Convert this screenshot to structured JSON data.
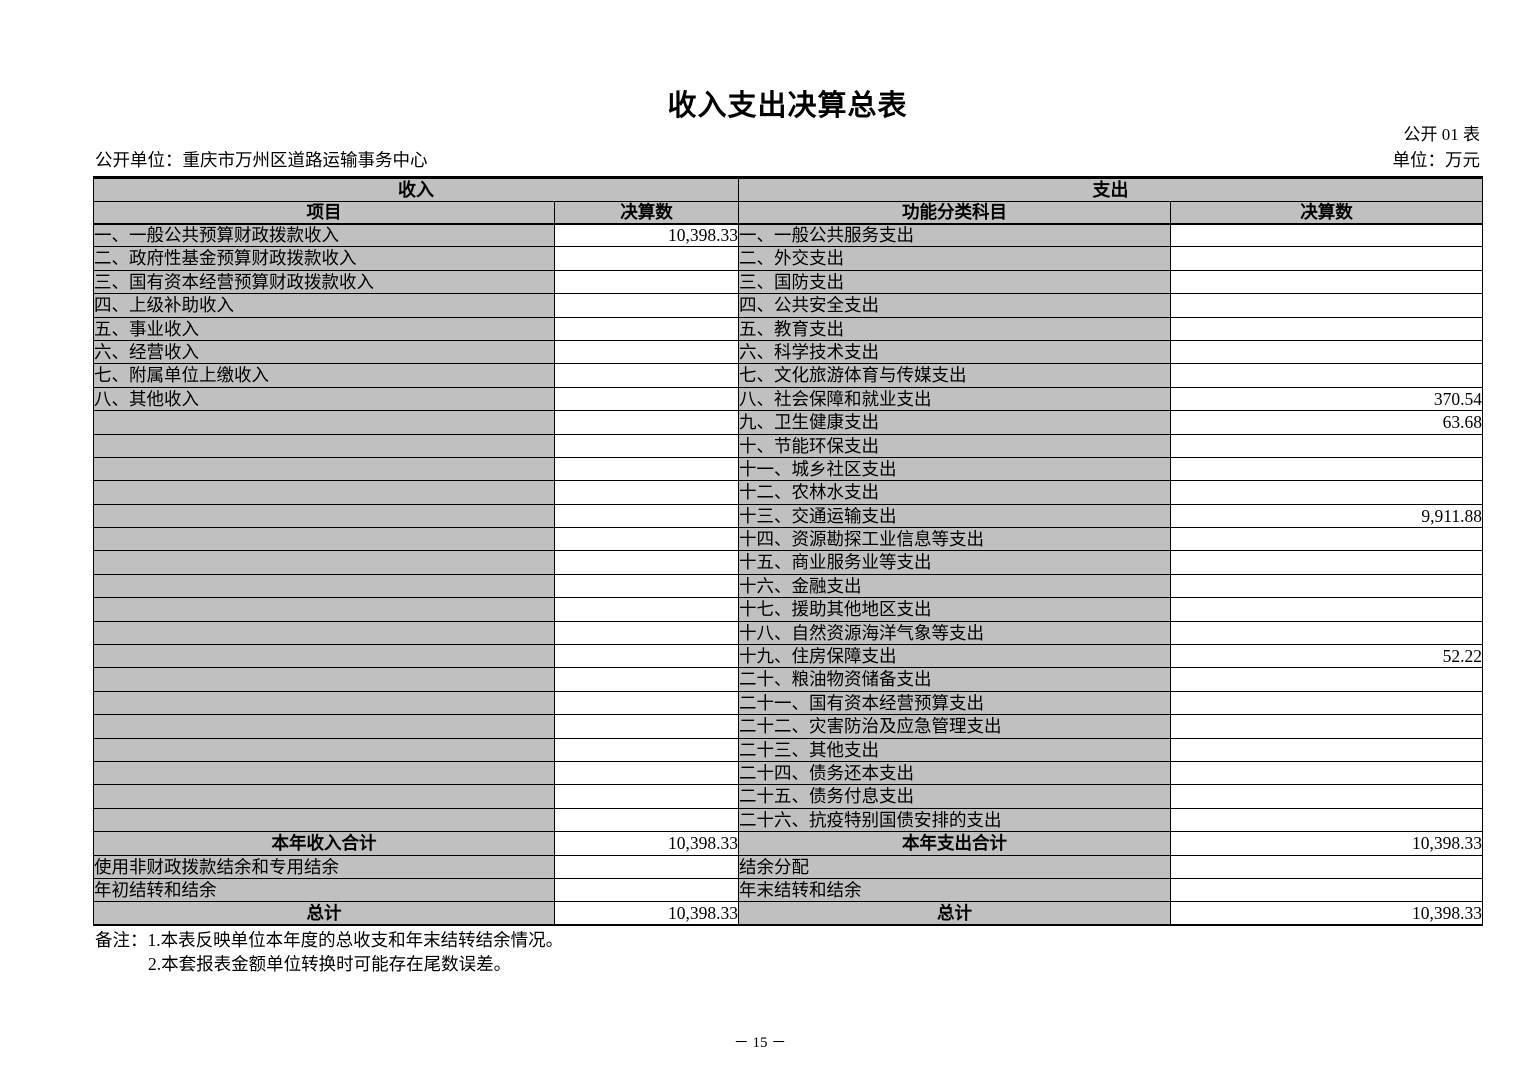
{
  "page": {
    "title": "收入支出决算总表",
    "table_code": "公开 01 表",
    "unit_line": "公开单位：重庆市万州区道路运输事务中心",
    "unit_measure": "单位：万元",
    "note_line1": "备注：1.本表反映单位本年度的总收支和年末结转结余情况。",
    "note_line2": "2.本套报表金额单位转换时可能存在尾数误差。",
    "page_number": "－ 15 －"
  },
  "colors": {
    "cell_gray": "#c0c0c0",
    "border": "#000000",
    "background": "#ffffff"
  },
  "table": {
    "income_header": "收入",
    "expense_header": "支出",
    "col_headers": [
      "项目",
      "决算数",
      "功能分类科目",
      "决算数"
    ],
    "rows": [
      {
        "income": "一、一般公共预算财政拨款收入",
        "income_value": "10,398.33",
        "expense": "一、一般公共服务支出",
        "expense_value": ""
      },
      {
        "income": "二、政府性基金预算财政拨款收入",
        "income_value": "",
        "expense": "二、外交支出",
        "expense_value": ""
      },
      {
        "income": "三、国有资本经营预算财政拨款收入",
        "income_value": "",
        "expense": "三、国防支出",
        "expense_value": ""
      },
      {
        "income": "四、上级补助收入",
        "income_value": "",
        "expense": "四、公共安全支出",
        "expense_value": ""
      },
      {
        "income": "五、事业收入",
        "income_value": "",
        "expense": "五、教育支出",
        "expense_value": ""
      },
      {
        "income": "六、经营收入",
        "income_value": "",
        "expense": "六、科学技术支出",
        "expense_value": ""
      },
      {
        "income": "七、附属单位上缴收入",
        "income_value": "",
        "expense": "七、文化旅游体育与传媒支出",
        "expense_value": ""
      },
      {
        "income": "八、其他收入",
        "income_value": "",
        "expense": "八、社会保障和就业支出",
        "expense_value": "370.54"
      },
      {
        "income": "",
        "income_value": "",
        "expense": "九、卫生健康支出",
        "expense_value": "63.68"
      },
      {
        "income": "",
        "income_value": "",
        "expense": "十、节能环保支出",
        "expense_value": ""
      },
      {
        "income": "",
        "income_value": "",
        "expense": "十一、城乡社区支出",
        "expense_value": ""
      },
      {
        "income": "",
        "income_value": "",
        "expense": "十二、农林水支出",
        "expense_value": ""
      },
      {
        "income": "",
        "income_value": "",
        "expense": "十三、交通运输支出",
        "expense_value": "9,911.88"
      },
      {
        "income": "",
        "income_value": "",
        "expense": "十四、资源勘探工业信息等支出",
        "expense_value": ""
      },
      {
        "income": "",
        "income_value": "",
        "expense": "十五、商业服务业等支出",
        "expense_value": ""
      },
      {
        "income": "",
        "income_value": "",
        "expense": "十六、金融支出",
        "expense_value": ""
      },
      {
        "income": "",
        "income_value": "",
        "expense": "十七、援助其他地区支出",
        "expense_value": ""
      },
      {
        "income": "",
        "income_value": "",
        "expense": "十八、自然资源海洋气象等支出",
        "expense_value": ""
      },
      {
        "income": "",
        "income_value": "",
        "expense": "十九、住房保障支出",
        "expense_value": "52.22"
      },
      {
        "income": "",
        "income_value": "",
        "expense": "二十、粮油物资储备支出",
        "expense_value": ""
      },
      {
        "income": "",
        "income_value": "",
        "expense": "二十一、国有资本经营预算支出",
        "expense_value": ""
      },
      {
        "income": "",
        "income_value": "",
        "expense": "二十二、灾害防治及应急管理支出",
        "expense_value": ""
      },
      {
        "income": "",
        "income_value": "",
        "expense": "二十三、其他支出",
        "expense_value": ""
      },
      {
        "income": "",
        "income_value": "",
        "expense": "二十四、债务还本支出",
        "expense_value": ""
      },
      {
        "income": "",
        "income_value": "",
        "expense": "二十五、债务付息支出",
        "expense_value": ""
      },
      {
        "income": "",
        "income_value": "",
        "expense": "二十六、抗疫特别国债安排的支出",
        "expense_value": ""
      }
    ],
    "summary_rows": [
      {
        "income": "本年收入合计",
        "income_value": "10,398.33",
        "expense": "本年支出合计",
        "expense_value": "10,398.33",
        "bold": true
      },
      {
        "income": "使用非财政拨款结余和专用结余",
        "income_value": "",
        "expense": "结余分配",
        "expense_value": "",
        "bold": false
      },
      {
        "income": "年初结转和结余",
        "income_value": "",
        "expense": "年末结转和结余",
        "expense_value": "",
        "bold": false
      },
      {
        "income": "总计",
        "income_value": "10,398.33",
        "expense": "总计",
        "expense_value": "10,398.33",
        "bold": true
      }
    ]
  }
}
